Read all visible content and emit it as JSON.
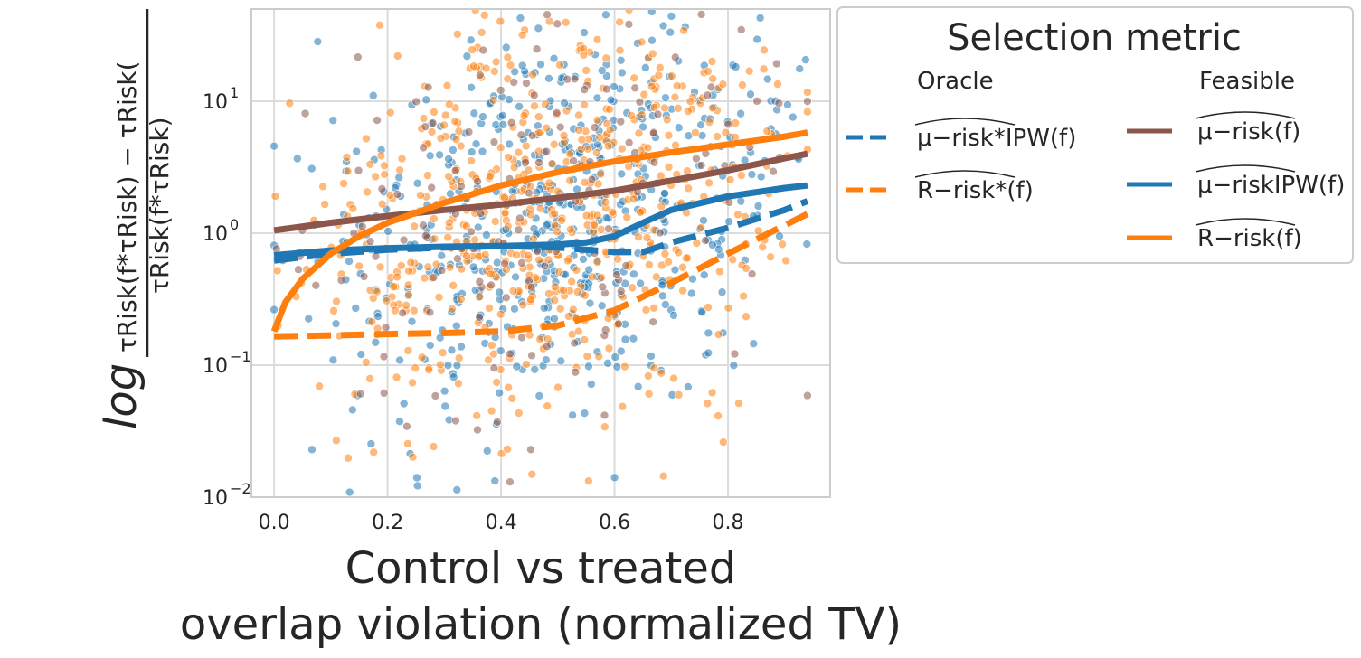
{
  "chart_data": {
    "type": "scatter",
    "title": "",
    "xlabel_line1": "Control vs treated",
    "xlabel_line2": "overlap violation (normalized TV)",
    "ylabel_log": "log",
    "ylabel_numerator": "τRisk(f*τRisk) − τRisk(",
    "ylabel_denominator": "τRisk(f*τRisk)",
    "x_ticks": [
      "0.0",
      "0.2",
      "0.4",
      "0.6",
      "0.8"
    ],
    "x_tick_values": [
      0.0,
      0.2,
      0.4,
      0.6,
      0.8
    ],
    "y_scale": "log",
    "y_ticks": [
      {
        "value": 0.01,
        "base": "10",
        "exp": "−2"
      },
      {
        "value": 0.1,
        "base": "10",
        "exp": "−1"
      },
      {
        "value": 1,
        "base": "10",
        "exp": "0"
      },
      {
        "value": 10,
        "base": "10",
        "exp": "1"
      }
    ],
    "xlim": [
      -0.04,
      0.98
    ],
    "ylim": [
      0.01,
      50
    ],
    "grid": true,
    "legend_title": "Selection metric",
    "legend_groups": {
      "oracle": "Oracle",
      "feasible": "Feasible"
    },
    "legend_placement": "outside right, top",
    "series": [
      {
        "name": "μ−risk*IPW(f)",
        "group": "Oracle",
        "color": "#1f77b4",
        "style": "dashed",
        "x": [
          0.0,
          0.1,
          0.2,
          0.3,
          0.4,
          0.5,
          0.6,
          0.65,
          0.7,
          0.8,
          0.9,
          0.94
        ],
        "y": [
          0.62,
          0.7,
          0.75,
          0.78,
          0.8,
          0.78,
          0.72,
          0.72,
          0.85,
          1.1,
          1.5,
          1.75
        ]
      },
      {
        "name": "R−risk*(f)",
        "group": "Oracle",
        "color": "#ff7f0e",
        "style": "dashed",
        "x": [
          0.0,
          0.1,
          0.2,
          0.3,
          0.4,
          0.5,
          0.6,
          0.7,
          0.8,
          0.9,
          0.94
        ],
        "y": [
          0.165,
          0.168,
          0.172,
          0.175,
          0.18,
          0.2,
          0.26,
          0.42,
          0.7,
          1.15,
          1.4
        ]
      },
      {
        "name": "μ−risk(f)",
        "group": "Feasible",
        "color": "#8c564b",
        "style": "solid",
        "x": [
          0.0,
          0.1,
          0.2,
          0.3,
          0.4,
          0.5,
          0.6,
          0.7,
          0.8,
          0.9,
          0.94
        ],
        "y": [
          1.05,
          1.2,
          1.35,
          1.5,
          1.65,
          1.85,
          2.1,
          2.5,
          3.0,
          3.7,
          4.0
        ]
      },
      {
        "name": "μ−riskIPW(f)",
        "group": "Feasible",
        "color": "#1f77b4",
        "style": "solid",
        "x": [
          0.0,
          0.1,
          0.2,
          0.3,
          0.4,
          0.5,
          0.55,
          0.6,
          0.65,
          0.7,
          0.8,
          0.9,
          0.94
        ],
        "y": [
          0.68,
          0.74,
          0.77,
          0.79,
          0.8,
          0.82,
          0.85,
          0.95,
          1.2,
          1.5,
          1.9,
          2.2,
          2.3
        ]
      },
      {
        "name": "R−risk(f)",
        "group": "Feasible",
        "color": "#ff7f0e",
        "style": "solid",
        "x": [
          0.0,
          0.02,
          0.05,
          0.1,
          0.15,
          0.2,
          0.3,
          0.4,
          0.5,
          0.6,
          0.7,
          0.8,
          0.9,
          0.94
        ],
        "y": [
          0.18,
          0.3,
          0.45,
          0.7,
          0.95,
          1.2,
          1.7,
          2.3,
          2.9,
          3.5,
          4.1,
          4.7,
          5.4,
          5.8
        ]
      }
    ],
    "scatter_points": "approximately 1500 semi-transparent points per model colour, spread over the full x range with density and median rising with overlap violation"
  }
}
